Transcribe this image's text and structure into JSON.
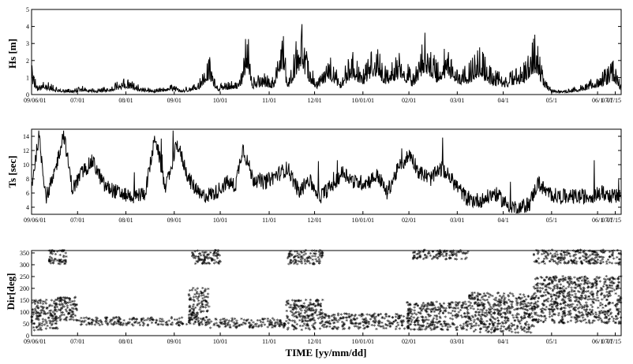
{
  "chart_data": [
    {
      "type": "line",
      "ylabel": "Hs [m]",
      "ylim": [
        0,
        5
      ],
      "yticks": [
        0,
        1,
        2,
        3,
        4,
        5
      ],
      "x_tick_labels": [
        "09/06/01",
        "07/01",
        "08/01",
        "09/01",
        "10/01",
        "11/01",
        "12/01",
        "10/01/01",
        "02/01",
        "03/01",
        "04/1",
        "05/1",
        "06/1",
        "07/1",
        "07/15"
      ],
      "x_range_days": [
        0,
        405
      ],
      "series": [
        {
          "values_envelope": [
            [
              0,
              1.8
            ],
            [
              4,
              0.6
            ],
            [
              10,
              0.8
            ],
            [
              18,
              0.4
            ],
            [
              28,
              0.3
            ],
            [
              35,
              0.5
            ],
            [
              45,
              0.3
            ],
            [
              55,
              0.6
            ],
            [
              65,
              1.0
            ],
            [
              75,
              0.5
            ],
            [
              85,
              0.3
            ],
            [
              95,
              0.6
            ],
            [
              105,
              0.4
            ],
            [
              115,
              0.9
            ],
            [
              122,
              2.3
            ],
            [
              128,
              0.6
            ],
            [
              138,
              0.8
            ],
            [
              144,
              1.2
            ],
            [
              148,
              4.3
            ],
            [
              152,
              1.0
            ],
            [
              160,
              1.3
            ],
            [
              166,
              1.0
            ],
            [
              172,
              4.3
            ],
            [
              176,
              0.8
            ],
            [
              185,
              4.5
            ],
            [
              190,
              2.0
            ],
            [
              196,
              0.9
            ],
            [
              205,
              2.4
            ],
            [
              212,
              1.0
            ],
            [
              220,
              2.7
            ],
            [
              228,
              1.5
            ],
            [
              236,
              3.0
            ],
            [
              244,
              1.5
            ],
            [
              254,
              2.6
            ],
            [
              262,
              1.2
            ],
            [
              270,
              3.8
            ],
            [
              278,
              2.0
            ],
            [
              286,
              3.0
            ],
            [
              294,
              1.5
            ],
            [
              300,
              1.8
            ],
            [
              308,
              2.8
            ],
            [
              316,
              1.5
            ],
            [
              326,
              1.2
            ],
            [
              334,
              1.6
            ],
            [
              340,
              2.0
            ],
            [
              346,
              3.6
            ],
            [
              352,
              1.0
            ],
            [
              358,
              0.3
            ],
            [
              368,
              0.3
            ],
            [
              376,
              0.5
            ],
            [
              386,
              1.0
            ],
            [
              394,
              1.5
            ],
            [
              400,
              2.0
            ],
            [
              405,
              0.5
            ]
          ]
        }
      ]
    },
    {
      "type": "line",
      "ylabel": "Ts [sec]",
      "ylim": [
        3,
        15
      ],
      "yticks": [
        4,
        6,
        8,
        10,
        12,
        14
      ],
      "x_tick_labels": [
        "09/06/01",
        "07/01",
        "08/01",
        "09/01",
        "10/01",
        "11/01",
        "12/01",
        "10/01/01",
        "02/01",
        "03/01",
        "04/1",
        "05/1",
        "06/1",
        "07/1",
        "07/15"
      ],
      "x_range_days": [
        0,
        405
      ],
      "series": [
        {
          "values_envelope": [
            [
              0,
              7.0
            ],
            [
              5,
              14.0
            ],
            [
              10,
              5.5
            ],
            [
              15,
              8.0
            ],
            [
              22,
              14.5
            ],
            [
              28,
              6.5
            ],
            [
              35,
              9.0
            ],
            [
              42,
              10.5
            ],
            [
              50,
              7.0
            ],
            [
              60,
              6.0
            ],
            [
              70,
              5.5
            ],
            [
              78,
              6.0
            ],
            [
              85,
              14.0
            ],
            [
              92,
              6.5
            ],
            [
              100,
              13.0
            ],
            [
              108,
              8.0
            ],
            [
              116,
              5.5
            ],
            [
              126,
              6.0
            ],
            [
              134,
              7.5
            ],
            [
              140,
              7.0
            ],
            [
              145,
              12.5
            ],
            [
              152,
              8.0
            ],
            [
              160,
              7.5
            ],
            [
              168,
              8.5
            ],
            [
              176,
              9.5
            ],
            [
              184,
              6.0
            ],
            [
              190,
              8.0
            ],
            [
              198,
              5.5
            ],
            [
              206,
              7.0
            ],
            [
              214,
              9.0
            ],
            [
              222,
              7.5
            ],
            [
              230,
              7.5
            ],
            [
              238,
              8.5
            ],
            [
              244,
              6.0
            ],
            [
              252,
              9.5
            ],
            [
              260,
              11.5
            ],
            [
              266,
              9.0
            ],
            [
              274,
              8.0
            ],
            [
              282,
              9.5
            ],
            [
              290,
              7.5
            ],
            [
              300,
              5.0
            ],
            [
              310,
              5.0
            ],
            [
              318,
              6.0
            ],
            [
              326,
              4.5
            ],
            [
              334,
              3.8
            ],
            [
              342,
              4.5
            ],
            [
              348,
              7.5
            ],
            [
              354,
              6.0
            ],
            [
              362,
              5.5
            ],
            [
              372,
              5.5
            ],
            [
              382,
              5.5
            ],
            [
              392,
              6.0
            ],
            [
              400,
              5.5
            ],
            [
              405,
              5.5
            ]
          ]
        }
      ]
    },
    {
      "type": "scatter",
      "ylabel": "Dir[deg]",
      "xlabel": "TIME [yy/mm/dd]",
      "ylim": [
        0,
        360
      ],
      "yticks": [
        0,
        50,
        100,
        150,
        200,
        250,
        300,
        350
      ],
      "x_tick_labels": [
        "09/06/01",
        "07/01",
        "08/01",
        "09/01",
        "10/01",
        "11/01",
        "12/01",
        "10/01/01",
        "02/01",
        "03/01",
        "04/1",
        "05/1",
        "06/1",
        "07/1",
        "07/15"
      ],
      "x_range_days": [
        0,
        405
      ],
      "series": [
        {
          "clusters": [
            {
              "x": [
                0,
                18
              ],
              "y": [
                20,
                150
              ]
            },
            {
              "x": [
                12,
                24
              ],
              "y": [
                300,
                360
              ]
            },
            {
              "x": [
                18,
                32
              ],
              "y": [
                60,
                160
              ]
            },
            {
              "x": [
                32,
                110
              ],
              "y": [
                40,
                75
              ]
            },
            {
              "x": [
                108,
                122
              ],
              "y": [
                40,
                200
              ]
            },
            {
              "x": [
                110,
                130
              ],
              "y": [
                300,
                360
              ]
            },
            {
              "x": [
                122,
                175
              ],
              "y": [
                30,
                70
              ]
            },
            {
              "x": [
                175,
                200
              ],
              "y": [
                20,
                150
              ]
            },
            {
              "x": [
                176,
                200
              ],
              "y": [
                300,
                360
              ]
            },
            {
              "x": [
                200,
                260
              ],
              "y": [
                25,
                90
              ]
            },
            {
              "x": [
                258,
                300
              ],
              "y": [
                20,
                140
              ]
            },
            {
              "x": [
                262,
                300
              ],
              "y": [
                320,
                360
              ]
            },
            {
              "x": [
                300,
                345
              ],
              "y": [
                10,
                180
              ]
            },
            {
              "x": [
                345,
                405
              ],
              "y": [
                50,
                250
              ]
            },
            {
              "x": [
                345,
                405
              ],
              "y": [
                300,
                360
              ]
            }
          ]
        }
      ]
    }
  ]
}
